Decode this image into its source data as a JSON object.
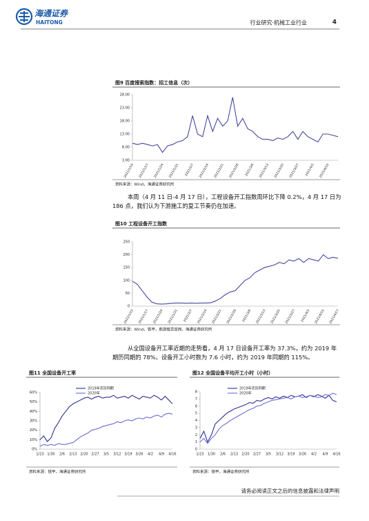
{
  "header": {
    "brand": "海通证券",
    "brand_en": "HAITONG",
    "section": "行业研究·机械工业行业",
    "page_number": "4"
  },
  "chart_data": [
    {
      "type": "line",
      "title": "图9 百度搜索指数：招工信息（次）",
      "source": "资料来源：Wind，海通证券研究所",
      "color": "#45459e",
      "categories": [
        "2021/1/10",
        null,
        null,
        "2021/1/17",
        null,
        null,
        "2021/1/24",
        null,
        null,
        "2021/1/31",
        null,
        null,
        "2021/2/7",
        null,
        null,
        "2021/2/14",
        null,
        null,
        "2021/2/21",
        null,
        null,
        "2021/2/28",
        null,
        null,
        "2021/3/6",
        null,
        null,
        "2021/3/13",
        null,
        null,
        "2021/3/20",
        null,
        null,
        "2021/3/27",
        null,
        null,
        "2021/4/3",
        null,
        null,
        "2021/4/10",
        null,
        null
      ],
      "values": [
        9.5,
        9,
        9.5,
        9,
        8.5,
        9,
        6,
        8.5,
        9,
        10,
        10.5,
        12,
        20,
        13,
        12,
        20,
        14,
        19,
        16,
        18,
        27,
        16,
        19,
        15,
        14,
        12,
        11,
        11,
        10.5,
        11.5,
        11,
        12,
        14,
        11,
        14,
        12,
        11,
        10,
        13,
        13,
        12.5,
        12
      ],
      "ylim": [
        3,
        28
      ],
      "yticks": [
        {
          "value": 3,
          "label": "3.00"
        },
        {
          "value": 8,
          "label": "8.00"
        },
        {
          "value": 13,
          "label": "13.00"
        },
        {
          "value": 18,
          "label": "18.00"
        },
        {
          "value": 23,
          "label": "23.00"
        },
        {
          "value": 28,
          "label": "28.00"
        }
      ]
    },
    {
      "type": "line",
      "title": "图10 工程设备开工指数",
      "source": "资料来源：Wind，铁甲，鼎源租赁官网，海通证券研究所",
      "color": "#45459e",
      "categories": [
        "2021/1/10",
        null,
        null,
        "2021/1/17",
        null,
        null,
        "2021/1/24",
        null,
        null,
        "2021/1/31",
        null,
        null,
        "2021/2/7",
        null,
        null,
        "2021/2/14",
        null,
        null,
        "2021/2/21",
        null,
        null,
        "2021/2/28",
        null,
        null,
        "2021/3/6",
        null,
        null,
        "2021/3/13",
        null,
        null,
        "2021/3/20",
        null,
        null,
        "2021/3/27",
        null,
        null,
        "2021/4/3",
        null,
        null,
        "2021/4/10",
        null,
        null,
        "2021/4/17"
      ],
      "values": [
        97,
        85,
        60,
        35,
        15,
        9,
        8,
        9,
        11,
        12,
        12,
        11,
        12,
        11,
        12,
        12,
        13,
        20,
        30,
        45,
        55,
        60,
        80,
        100,
        110,
        130,
        140,
        150,
        155,
        160,
        170,
        165,
        180,
        175,
        185,
        170,
        185,
        180,
        175,
        200,
        185,
        190,
        186
      ],
      "ylim": [
        0,
        250
      ],
      "yticks": [
        0,
        50,
        100,
        150,
        200,
        250
      ]
    },
    {
      "type": "line",
      "title": "图11 全国设备开工率",
      "source": "资料来源：铁甲，海通证券研究所",
      "legend": "upper-center",
      "categories": [
        "1/23",
        null,
        null,
        "1/30",
        null,
        null,
        "2/6",
        null,
        null,
        "2/13",
        null,
        null,
        "2/20",
        null,
        null,
        "2/27",
        null,
        null,
        "3/5",
        null,
        null,
        "3/12",
        null,
        null,
        "3/19",
        null,
        null,
        "3/26",
        null,
        null,
        "4/2",
        null,
        null,
        "4/9",
        null,
        null,
        "4/16"
      ],
      "series": [
        {
          "name": "2019年农历同期",
          "color": "#2b2f8f",
          "values": [
            10,
            14,
            8,
            12,
            22,
            28,
            35,
            40,
            45,
            48,
            50,
            52,
            54,
            55,
            53,
            55,
            56,
            54,
            55,
            55,
            57,
            54,
            55,
            56,
            54,
            57,
            55,
            53,
            56,
            55,
            54,
            57,
            55,
            52,
            56,
            52,
            48
          ]
        },
        {
          "name": "2020年",
          "color": "#6a6ad8",
          "values": [
            3,
            5,
            4,
            5,
            4,
            6,
            5,
            5,
            6,
            7,
            10,
            13,
            15,
            17,
            20,
            21,
            22,
            24,
            25,
            26,
            27,
            29,
            28,
            30,
            31,
            30,
            32,
            33,
            32,
            34,
            33,
            35,
            36,
            34,
            37,
            38,
            37
          ]
        }
      ],
      "ylim": [
        0,
        60
      ],
      "yticks": [
        {
          "value": 0,
          "label": "0%"
        },
        {
          "value": 10,
          "label": "10%"
        },
        {
          "value": 20,
          "label": "20%"
        },
        {
          "value": 30,
          "label": "30%"
        },
        {
          "value": 40,
          "label": "40%"
        },
        {
          "value": 50,
          "label": "50%"
        },
        {
          "value": 60,
          "label": "60%"
        }
      ]
    },
    {
      "type": "line",
      "title": "图12 全国设备平均开工小时（小时）",
      "source": "资料来源：铁甲，海通证券研究所",
      "legend": "upper-center",
      "categories": [
        "1/23",
        null,
        null,
        "1/30",
        null,
        null,
        "2/6",
        null,
        null,
        "2/13",
        null,
        null,
        "2/20",
        null,
        null,
        "2/27",
        null,
        null,
        "3/5",
        null,
        null,
        "3/12",
        null,
        null,
        "3/19",
        null,
        null,
        "3/26",
        null,
        null,
        "4/2",
        null,
        null,
        "4/9",
        null,
        null,
        "4/16"
      ],
      "series": [
        {
          "name": "2019年农历同期",
          "color": "#2b2f8f",
          "values": [
            1.5,
            2.5,
            1,
            2,
            3.5,
            4,
            4.5,
            5,
            5.3,
            5.6,
            5.8,
            6,
            6.2,
            6.5,
            6.4,
            6.8,
            6.7,
            7,
            7.2,
            7,
            7.3,
            7.1,
            7.4,
            7.2,
            7.5,
            7.3,
            7.4,
            7.6,
            7.2,
            7.5,
            7.3,
            7.6,
            7.4,
            7.1,
            7.5,
            6.8,
            6.6
          ]
        },
        {
          "name": "2020年",
          "color": "#6a6ad8",
          "values": [
            1,
            1.5,
            0.8,
            1.5,
            2,
            2.8,
            3.3,
            3.6,
            4,
            4.3,
            4.6,
            4.9,
            5.2,
            5.5,
            5.7,
            6,
            6.1,
            6.4,
            6.6,
            6.8,
            6.9,
            7,
            7.1,
            7.2,
            7,
            7.3,
            7.4,
            7.2,
            7.3,
            7.5,
            7.4,
            7.2,
            7.3,
            7.6,
            7.5,
            7.8,
            7.6
          ]
        }
      ],
      "ylim": [
        0,
        8
      ],
      "yticks": [
        0,
        1,
        2,
        3,
        4,
        5,
        6,
        7,
        8
      ]
    }
  ],
  "paragraphs": [
    "本周（4 月 11 日-4 月 17 日），工程设备开工指数周环比下降 0.2%，4 月 17 日为 186 点，我们认为下游施工的复工节奏仍在加速。",
    "从全国设备开工率近期的走势看，4 月 17 日设备开工率为 37.3%，约为 2019 年期历同期的 78%。设备开工小时数为 7.6 小时，约为 2019 年同期的 115%。"
  ],
  "footer": "请务必阅读正文之后的信息披露和法律声明"
}
